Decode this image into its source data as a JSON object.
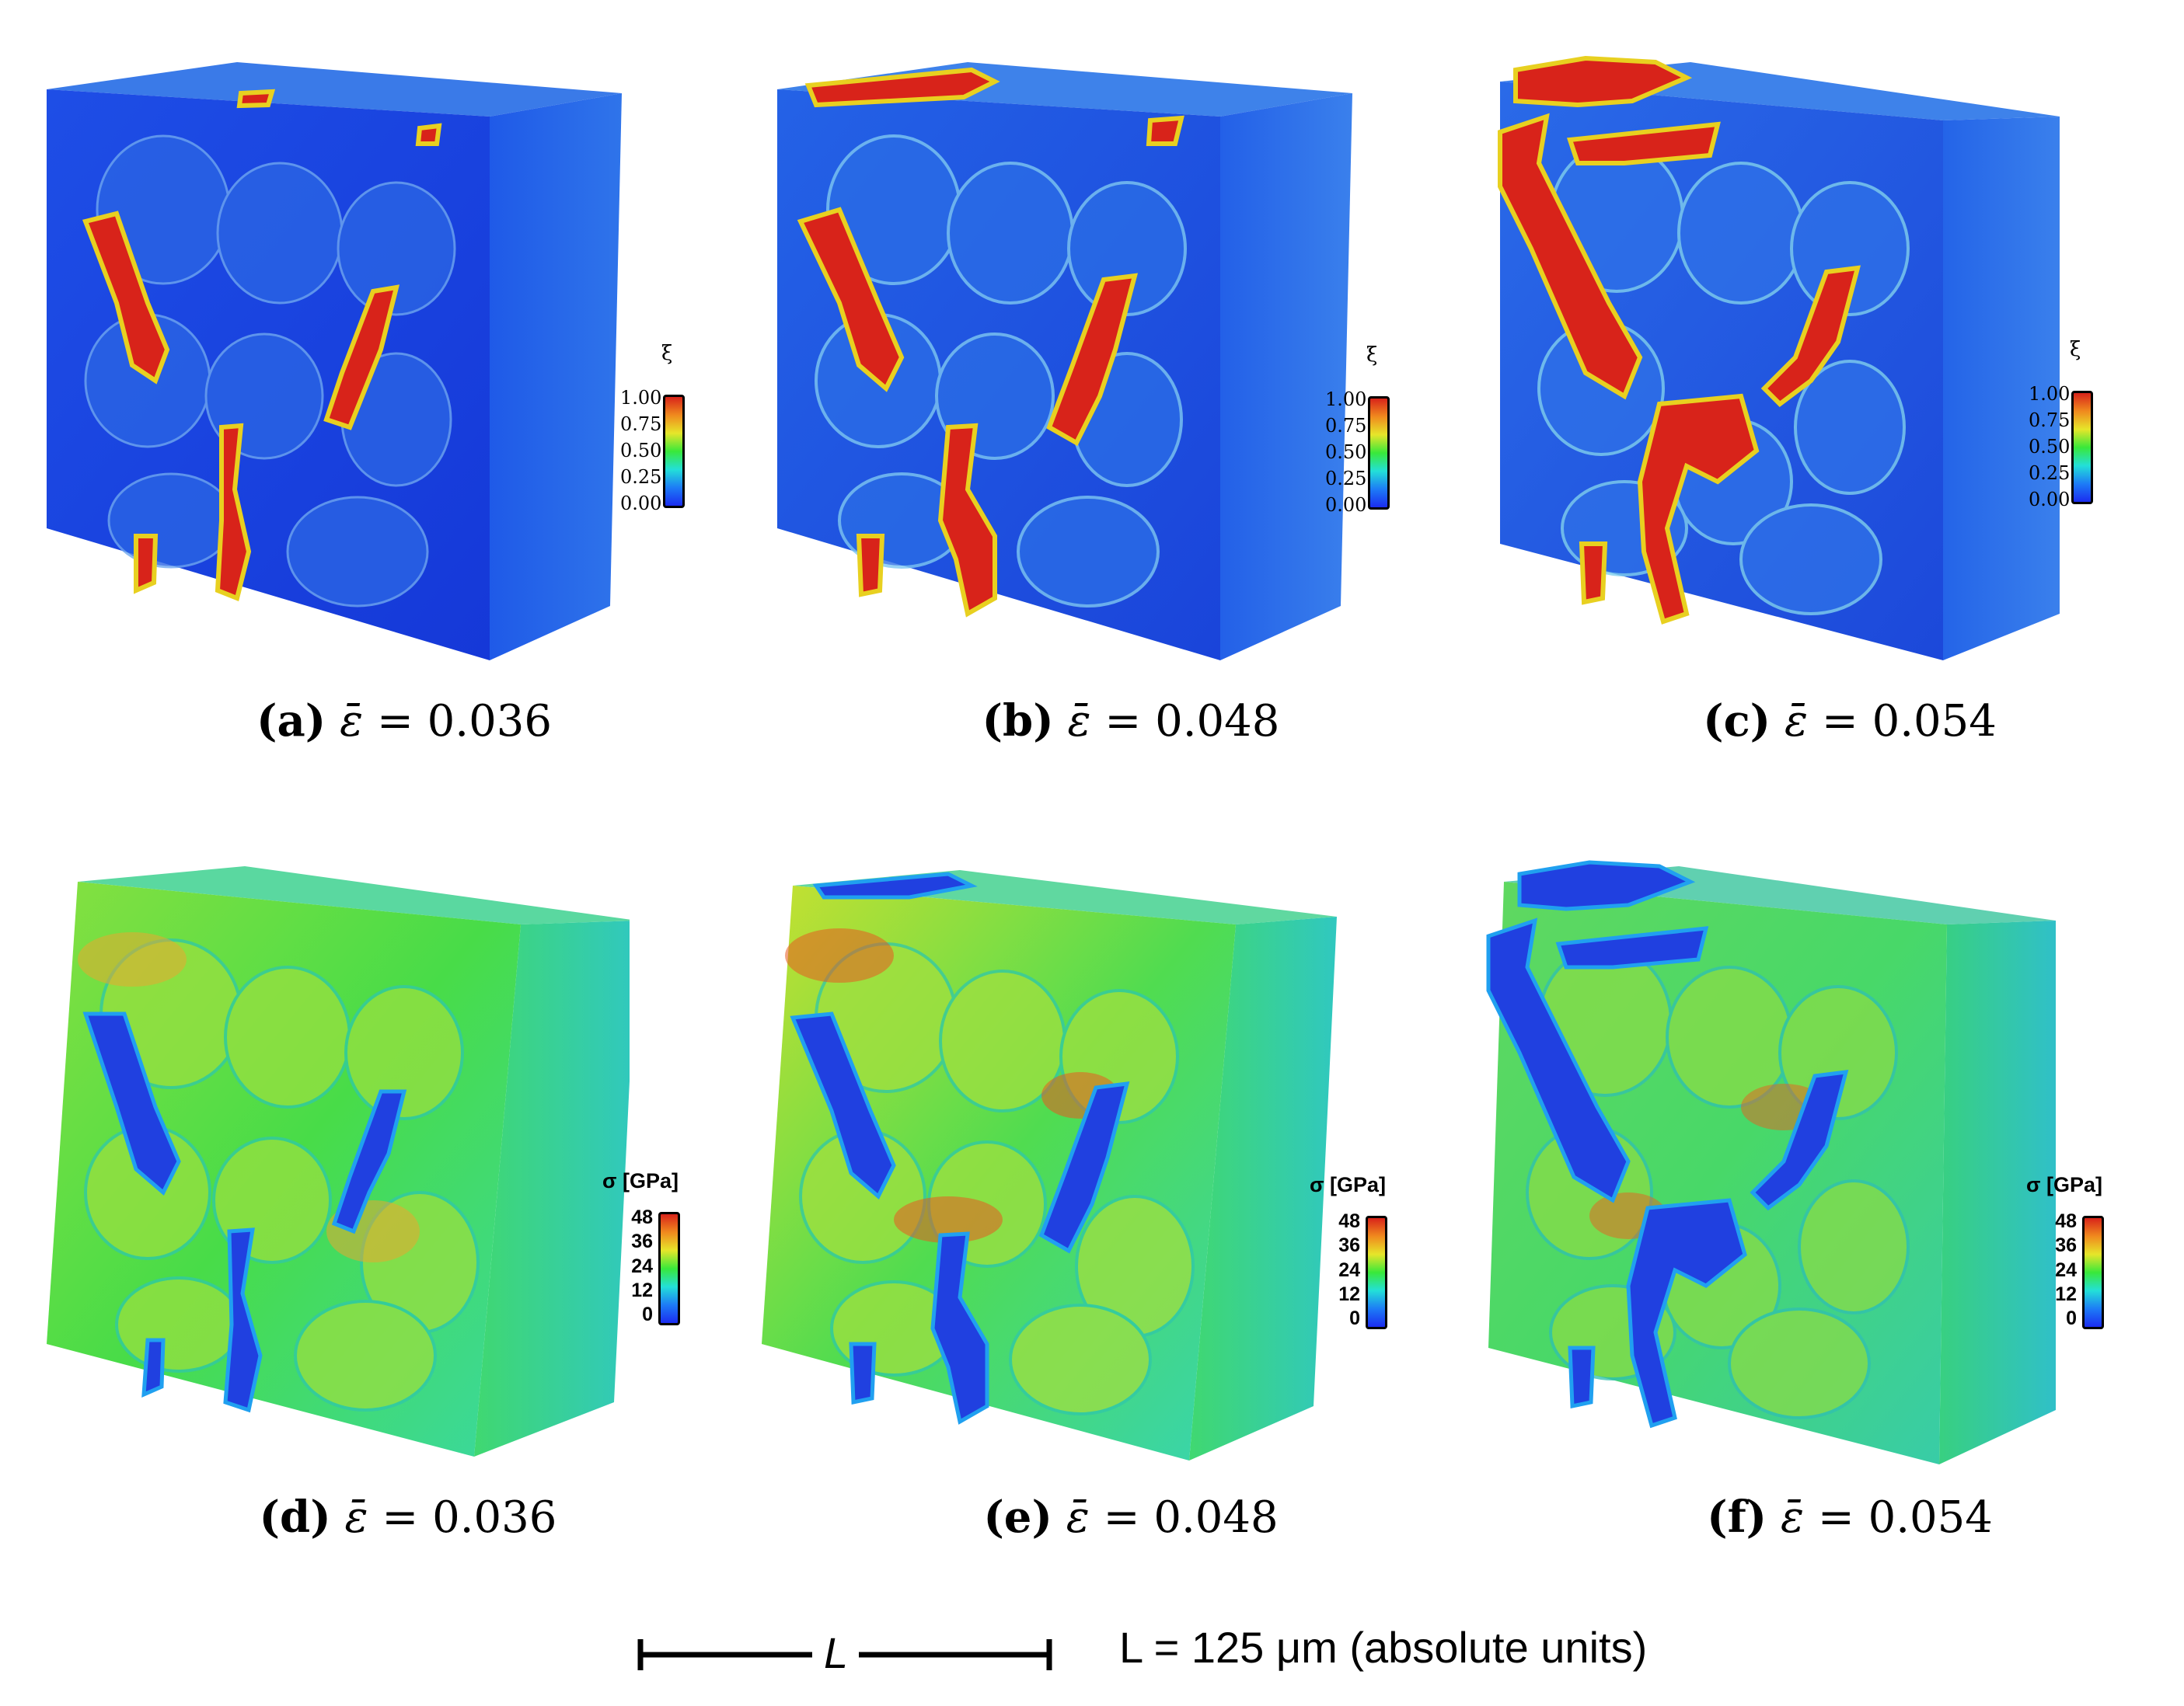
{
  "colormap": [
    "#1b2cf0",
    "#1d7cf6",
    "#23e0d8",
    "#39e83a",
    "#e6e62a",
    "#f08a1e",
    "#d8231a"
  ],
  "colorbars": {
    "xi": {
      "title": "ξ",
      "ticks": [
        "1.00",
        "0.75",
        "0.50",
        "0.25",
        "0.00"
      ]
    },
    "sigma": {
      "title": "σ [GPa]",
      "ticks": [
        "48",
        "36",
        "24",
        "12",
        "0"
      ]
    }
  },
  "panels": [
    {
      "label": "(a)",
      "eps_symbol": "ε̄",
      "eps_value": "= 0.036",
      "field": "xi"
    },
    {
      "label": "(b)",
      "eps_symbol": "ε̄",
      "eps_value": "= 0.048",
      "field": "xi"
    },
    {
      "label": "(c)",
      "eps_symbol": "ε̄",
      "eps_value": "= 0.054",
      "field": "xi"
    },
    {
      "label": "(d)",
      "eps_symbol": "ε̄",
      "eps_value": "= 0.036",
      "field": "sigma"
    },
    {
      "label": "(e)",
      "eps_symbol": "ε̄",
      "eps_value": "= 0.048",
      "field": "sigma"
    },
    {
      "label": "(f)",
      "eps_symbol": "ε̄",
      "eps_value": "= 0.054",
      "field": "sigma"
    }
  ],
  "scale_bar": {
    "bar_label": "L",
    "note": "L = 125 μm (absolute units)"
  }
}
